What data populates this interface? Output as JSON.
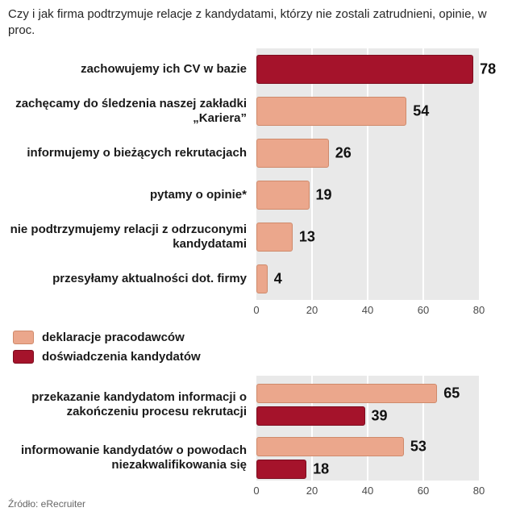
{
  "source": "Źródło: eRecruiter",
  "colors": {
    "dark": "#a5132b",
    "dark_border": "#7c0d1f",
    "light": "#eba78c",
    "light_border": "#cf8a6b",
    "plot_bg": "#e9e9e9",
    "grid": "#ffffff"
  },
  "chart_data": [
    {
      "type": "bar",
      "orientation": "horizontal",
      "title": "Czy i jak firma podtrzymuje relacje z kandydatami, którzy nie zostali zatrudnieni, opinie, w proc.",
      "categories": [
        "zachowujemy ich CV w bazie",
        "zachęcamy do śledzenia naszej zakładki „Kariera”",
        "informujemy o bieżących rekrutacjach",
        "pytamy o opinie*",
        "nie podtrzymujemy relacji z odrzuconymi kandydatami",
        "przesyłamy aktualności dot. firmy"
      ],
      "values": [
        78,
        54,
        26,
        19,
        13,
        4
      ],
      "bar_colors": [
        "dark",
        "light",
        "light",
        "light",
        "light",
        "light"
      ],
      "xlim": [
        0,
        80
      ],
      "ticks": [
        0,
        20,
        40,
        60,
        80
      ],
      "grid": true,
      "legend_position": "none"
    },
    {
      "type": "bar",
      "orientation": "horizontal",
      "title": "",
      "categories": [
        "przekazanie kandydatom informacji o zakończeniu procesu rekrutacji",
        "informowanie kandydatów o powodach niezakwalifikowania się"
      ],
      "series": [
        {
          "name": "deklaracje pracodawców",
          "color": "light",
          "values": [
            65,
            53
          ]
        },
        {
          "name": "doświadczenia kandydatów",
          "color": "dark",
          "values": [
            39,
            18
          ]
        }
      ],
      "xlim": [
        0,
        80
      ],
      "ticks": [
        0,
        20,
        40,
        60,
        80
      ],
      "grid": true,
      "legend_position": "above"
    }
  ]
}
